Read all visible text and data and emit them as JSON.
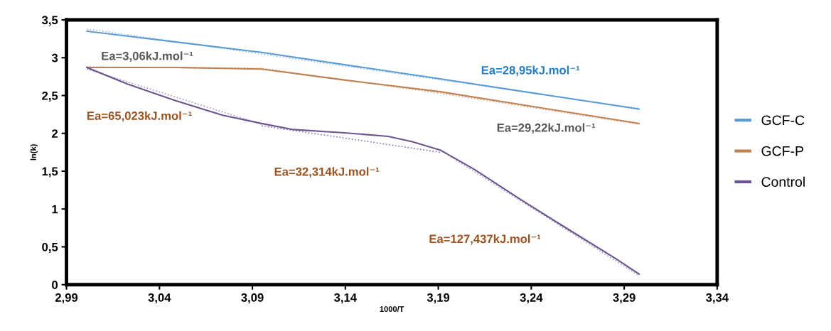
{
  "chart_data": {
    "type": "line",
    "xlabel": "1000/T",
    "ylabel": "ln(k)",
    "xlim": [
      2.99,
      3.34
    ],
    "ylim": [
      0,
      3.5
    ],
    "xticks": [
      {
        "value": 2.99,
        "label": "2,99"
      },
      {
        "value": 3.04,
        "label": "3,04"
      },
      {
        "value": 3.09,
        "label": "3,09"
      },
      {
        "value": 3.14,
        "label": "3,14"
      },
      {
        "value": 3.19,
        "label": "3,19"
      },
      {
        "value": 3.24,
        "label": "3,24"
      },
      {
        "value": 3.29,
        "label": "3,29"
      },
      {
        "value": 3.34,
        "label": "3,34"
      }
    ],
    "yticks": [
      0,
      {
        "value": 0.5,
        "label": "0,5"
      },
      1,
      {
        "value": 1.5,
        "label": "1,5"
      },
      2,
      {
        "value": 2.5,
        "label": "2,5"
      },
      3,
      {
        "value": 3.5,
        "label": "3,5"
      }
    ],
    "grid": false,
    "legend": "right",
    "marker": "none",
    "line_style": "solid",
    "series": [
      {
        "name": "GCF-C",
        "color": "#5b9bd5",
        "x": [
          3.001,
          3.095,
          3.191,
          3.298
        ],
        "values": [
          3.35,
          3.07,
          2.72,
          2.32
        ]
      },
      {
        "name": "GCF-P",
        "color": "#c0804f",
        "x": [
          3.001,
          3.05,
          3.095,
          3.138,
          3.191,
          3.298
        ],
        "values": [
          2.87,
          2.87,
          2.85,
          2.71,
          2.55,
          2.13
        ]
      },
      {
        "name": "Control",
        "color": "#6b5590",
        "x": [
          3.001,
          3.023,
          3.049,
          3.074,
          3.095,
          3.112,
          3.138,
          3.163,
          3.176,
          3.191,
          3.209,
          3.234,
          3.26,
          3.285,
          3.298
        ],
        "values": [
          2.87,
          2.65,
          2.43,
          2.24,
          2.13,
          2.05,
          2.01,
          1.96,
          1.89,
          1.78,
          1.53,
          1.13,
          0.73,
          0.35,
          0.14
        ]
      },
      {
        "type": "line",
        "line_style": "dotted",
        "color": "#9dbde6",
        "x": [
          3.001,
          3.298
        ],
        "values": [
          3.38,
          2.33
        ]
      },
      {
        "type": "line",
        "line_style": "dotted",
        "color": "#d9a98a",
        "x": [
          3.001,
          3.095,
          3.191,
          3.298
        ],
        "values": [
          2.88,
          2.86,
          2.53,
          2.12
        ]
      },
      {
        "type": "line",
        "line_style": "dotted",
        "color": "#a595c8",
        "x": [
          3.001,
          3.095
        ],
        "values": [
          2.85,
          2.12
        ]
      },
      {
        "type": "line",
        "line_style": "dotted",
        "color": "#8a70c0",
        "x": [
          3.095,
          3.191
        ],
        "values": [
          2.1,
          1.75
        ]
      },
      {
        "type": "line",
        "line_style": "dotted",
        "color": "#a595c8",
        "x": [
          3.191,
          3.298
        ],
        "values": [
          1.78,
          0.12
        ]
      }
    ],
    "annotations": [
      "Ea=3,06kJ.mol⁻¹",
      "Ea=65,023kJ.mol⁻¹",
      "Ea=32,314kJ.mol⁻¹",
      "Ea=28,95kJ.mol⁻¹",
      "Ea=29,22kJ.mol⁻¹",
      "Ea=127,437kJ.mol⁻¹"
    ]
  }
}
